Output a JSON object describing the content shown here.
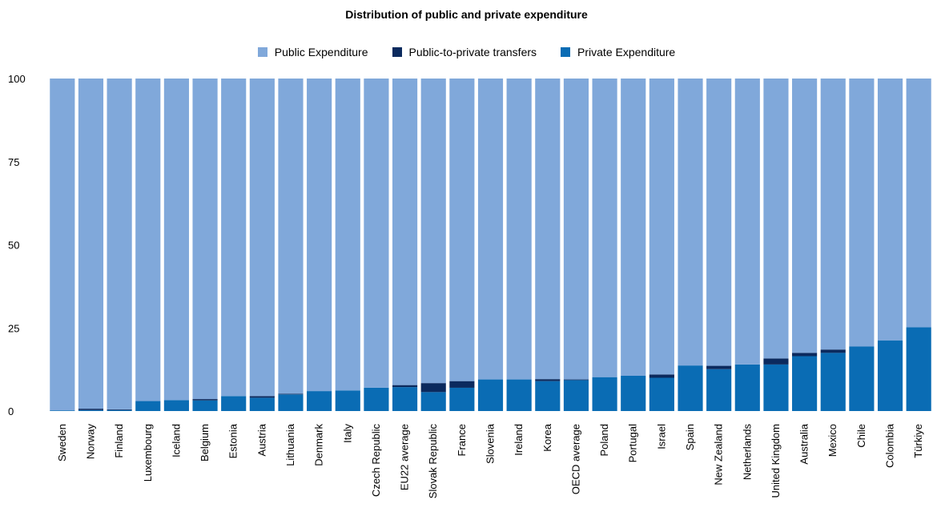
{
  "chart_data": {
    "type": "bar",
    "stacked": true,
    "title": "Distribution of public and private expenditure",
    "xlabel": "",
    "ylabel": "",
    "ylim": [
      0,
      100
    ],
    "yticks": [
      "0",
      "25",
      "50",
      "75",
      "100"
    ],
    "grid": false,
    "legend_position": "top-center",
    "categories": [
      "Sweden",
      "Norway",
      "Finland",
      "Luxembourg",
      "Iceland",
      "Belgium",
      "Estonia",
      "Austria",
      "Lithuania",
      "Denmark",
      "Italy",
      "Czech Republic",
      "EU22 average",
      "Slovak Republic",
      "France",
      "Slovenia",
      "Ireland",
      "Korea",
      "OECD average",
      "Poland",
      "Portugal",
      "Israel",
      "Spain",
      "New Zealand",
      "Netherlands",
      "United Kingdom",
      "Australia",
      "Mexico",
      "Chile",
      "Colombia",
      "Türkiye"
    ],
    "series": [
      {
        "name": "Private Expenditure",
        "color": "#0a6cb4",
        "values": [
          0.2,
          0.3,
          0.3,
          3,
          3.3,
          3.2,
          4.5,
          4,
          5,
          6,
          6.2,
          7,
          7.2,
          5.7,
          7,
          9.5,
          9.5,
          9,
          9.3,
          10.2,
          10.6,
          10,
          13.7,
          12.6,
          14,
          14,
          16.5,
          17.5,
          19.4,
          21.2,
          25.2
        ]
      },
      {
        "name": "Public-to-private transfers",
        "color": "#0b2a5e",
        "values": [
          0,
          0.4,
          0.2,
          0,
          0,
          0.4,
          0,
          0.5,
          0.2,
          0,
          0,
          0,
          0.6,
          2.7,
          2,
          0,
          0,
          0.6,
          0.2,
          0,
          0,
          1,
          0,
          1,
          0,
          1.8,
          1,
          1,
          0,
          0,
          0
        ]
      },
      {
        "name": "Public Expenditure",
        "color": "#80a8da",
        "values": [
          99.8,
          99.3,
          99.5,
          97,
          96.7,
          96.4,
          95.5,
          95.5,
          94.8,
          94,
          93.8,
          93,
          92.2,
          91.6,
          91,
          90.5,
          90.5,
          90.4,
          90.5,
          89.8,
          89.4,
          89,
          86.3,
          86.4,
          86,
          84.2,
          82.5,
          81.5,
          80.6,
          78.8,
          74.8
        ]
      }
    ]
  },
  "legend": [
    {
      "label": "Public Expenditure",
      "color": "#80a8da"
    },
    {
      "label": "Public-to-private transfers",
      "color": "#0b2a5e"
    },
    {
      "label": "Private Expenditure",
      "color": "#0a6cb4"
    }
  ]
}
